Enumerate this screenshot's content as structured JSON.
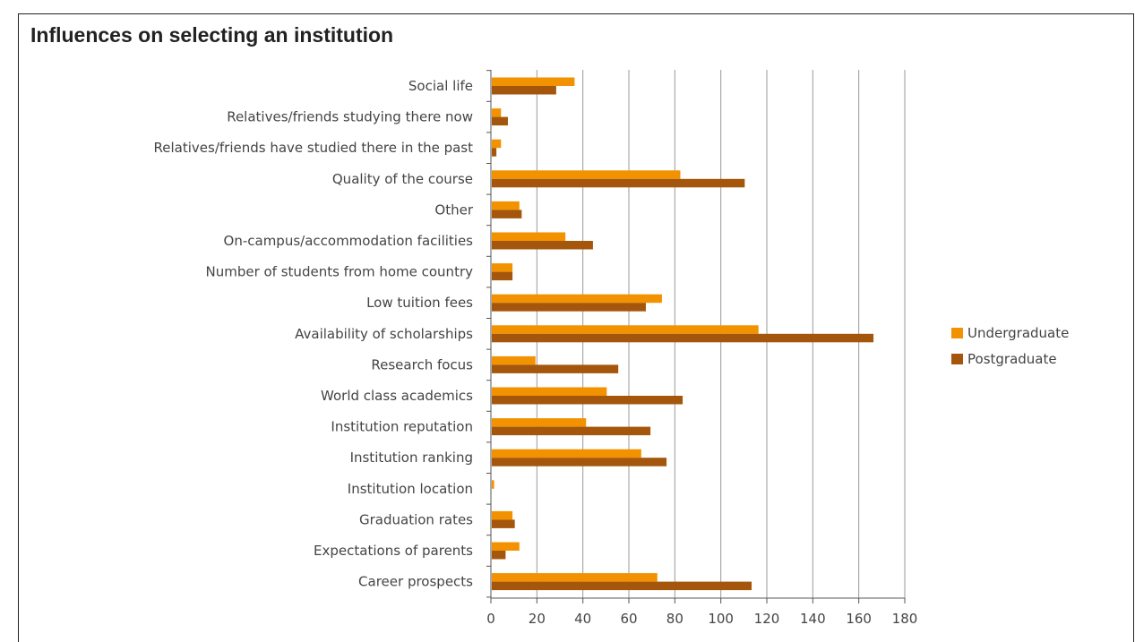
{
  "chart_data": {
    "type": "bar",
    "orientation": "horizontal",
    "title": "Influences on selecting an institution",
    "xlabel": "",
    "ylabel": "",
    "xlim": [
      0,
      180
    ],
    "ticks": [
      0,
      20,
      40,
      60,
      80,
      100,
      120,
      140,
      160,
      180
    ],
    "grid": "vertical",
    "legend_position": "right",
    "categories": [
      "Social life",
      "Relatives/friends studying there now",
      "Relatives/friends have studied there in the past",
      "Quality of the course",
      "Other",
      "On-campus/accommodation facilities",
      "Number of students from home country",
      "Low tuition fees",
      "Availability of scholarships",
      "Research focus",
      "World class academics",
      "Institution reputation",
      "Institution ranking",
      "Institution location",
      "Graduation rates",
      "Expectations of parents",
      "Career prospects"
    ],
    "series": [
      {
        "name": "Undergraduate",
        "color": "#F39200",
        "values": [
          36,
          4,
          4,
          82,
          12,
          32,
          9,
          74,
          116,
          19,
          50,
          41,
          65,
          1,
          9,
          12,
          72
        ]
      },
      {
        "name": "Postgraduate",
        "color": "#A4570C",
        "values": [
          28,
          7,
          2,
          110,
          13,
          44,
          9,
          67,
          166,
          55,
          83,
          69,
          76,
          0,
          10,
          6,
          113
        ]
      }
    ]
  }
}
